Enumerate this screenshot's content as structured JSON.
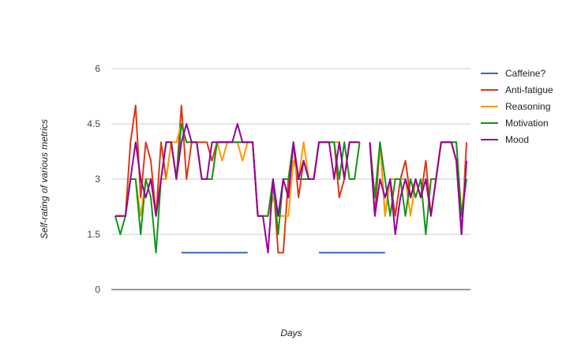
{
  "chart_data": {
    "type": "line",
    "title": "",
    "xlabel": "Days",
    "ylabel": "Self-rating of various metrics",
    "ylim": [
      0,
      6
    ],
    "yticks": [
      "0",
      "1.5",
      "3",
      "4.5",
      "6"
    ],
    "grid": "horizontal",
    "legend_position": "right",
    "x": [
      1,
      2,
      3,
      4,
      5,
      6,
      7,
      8,
      9,
      10,
      11,
      12,
      13,
      14,
      15,
      16,
      17,
      18,
      19,
      20,
      21,
      22,
      23,
      24,
      25,
      26,
      27,
      28,
      29,
      30,
      31,
      32,
      33,
      34,
      35,
      36,
      37,
      38,
      39,
      40,
      41,
      42,
      43,
      44,
      45,
      46,
      47,
      48,
      49,
      50,
      51,
      52,
      53,
      54,
      55,
      56,
      57,
      58,
      59,
      60,
      61,
      62,
      63,
      64,
      65,
      66,
      67,
      68,
      69,
      70
    ],
    "series": [
      {
        "name": "Caffeine?",
        "color": "#3366cc",
        "values": [
          null,
          null,
          null,
          null,
          null,
          null,
          null,
          null,
          null,
          null,
          null,
          null,
          null,
          1,
          1,
          1,
          1,
          1,
          1,
          1,
          1,
          1,
          1,
          1,
          1,
          1,
          1,
          null,
          null,
          null,
          null,
          null,
          null,
          null,
          null,
          null,
          null,
          null,
          null,
          null,
          1,
          1,
          1,
          1,
          1,
          1,
          1,
          1,
          1,
          1,
          1,
          1,
          1,
          1,
          null,
          null,
          null,
          null,
          null,
          null,
          null,
          null,
          null,
          null,
          null,
          null,
          null,
          null,
          null,
          null
        ]
      },
      {
        "name": "Anti-fatigue",
        "color": "#dc3912",
        "values": [
          2,
          2,
          2,
          4,
          5,
          2.5,
          4,
          3.5,
          2,
          4,
          3,
          4,
          3,
          5,
          3,
          4,
          4,
          4,
          4,
          3.5,
          4,
          4,
          4,
          4,
          4,
          4,
          4,
          4,
          2,
          2,
          2,
          3,
          1,
          1,
          3,
          4,
          2.5,
          3.5,
          3,
          3,
          4,
          4,
          4,
          4,
          2.5,
          3,
          4,
          4,
          4,
          null,
          4,
          2,
          4,
          2,
          3,
          2,
          3,
          3.5,
          2.5,
          3,
          2.5,
          3.5,
          2,
          3,
          4,
          4,
          4,
          3.5,
          1.5,
          4
        ]
      },
      {
        "name": "Reasoning",
        "color": "#ff9900",
        "values": [
          2,
          2,
          2,
          3,
          3,
          2,
          3,
          3,
          2,
          3,
          3,
          4,
          4,
          4.5,
          4,
          4,
          4,
          3,
          3,
          3,
          4,
          3.5,
          4,
          4,
          4,
          3.5,
          4,
          4,
          2,
          2,
          2,
          2.5,
          2,
          2,
          2,
          3.5,
          3,
          4,
          3,
          3,
          4,
          4,
          4,
          4,
          4,
          3,
          4,
          4,
          4,
          null,
          4,
          2.5,
          4,
          2,
          3,
          3,
          3,
          3,
          2,
          3,
          2.5,
          3,
          2,
          3,
          4,
          4,
          4,
          4,
          2,
          3.5
        ]
      },
      {
        "name": "Motivation",
        "color": "#109618",
        "values": [
          2,
          1.5,
          2,
          3,
          3,
          1.5,
          3,
          2.5,
          1,
          3,
          4,
          4,
          3,
          4.5,
          4,
          4,
          4,
          3,
          3,
          3,
          4,
          4,
          4,
          4,
          4,
          4,
          4,
          4,
          2,
          2,
          2,
          3,
          1.5,
          3,
          3,
          4,
          3,
          3,
          3,
          3,
          4,
          4,
          4,
          4,
          3,
          4,
          3,
          3,
          4,
          null,
          4,
          2.5,
          4,
          3,
          2,
          3,
          3,
          2,
          3,
          2.5,
          3,
          1.5,
          3,
          3,
          4,
          4,
          4,
          4,
          2,
          3
        ]
      },
      {
        "name": "Mood",
        "color": "#990099",
        "values": [
          2,
          2,
          2,
          3,
          4,
          3,
          2.5,
          3,
          2,
          3,
          4,
          4,
          3,
          4,
          4.5,
          4,
          4,
          3,
          3,
          4,
          4,
          4,
          4,
          4,
          4.5,
          4,
          4,
          4,
          2,
          2,
          1,
          3,
          2,
          3,
          2.5,
          4,
          3,
          3.5,
          3,
          3,
          4,
          4,
          4,
          3,
          4,
          3,
          4,
          4,
          4,
          null,
          4,
          2,
          3,
          2.5,
          3,
          1.5,
          2.5,
          3,
          2.5,
          3,
          2.5,
          3,
          2,
          3,
          4,
          4,
          4,
          3.5,
          1.5,
          3.5
        ]
      }
    ]
  }
}
